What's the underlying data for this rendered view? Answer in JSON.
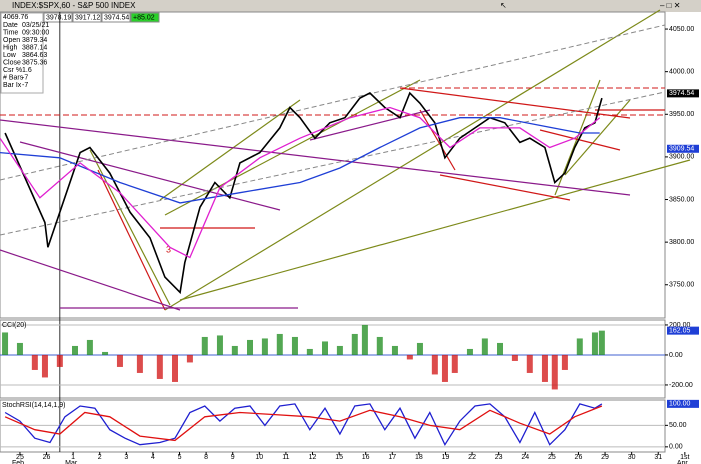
{
  "header": {
    "title": "INDEX:$SPX,60 - S&P 500 INDEX",
    "top_value": "4069.76",
    "quotes": [
      "3978.19",
      "3917.12",
      "3974.54",
      "+85.02"
    ],
    "info": [
      [
        "Date",
        "03/25/21"
      ],
      [
        "Time",
        "09:30:00"
      ],
      [
        "Open",
        "3879.34"
      ],
      [
        "High",
        "3887.14"
      ],
      [
        "Low",
        "3864.63"
      ],
      [
        "Close",
        "3875.36"
      ],
      [
        "Csr %",
        "1.6"
      ],
      [
        "# Bars",
        "-7"
      ],
      [
        "Bar Ix",
        "-7"
      ]
    ]
  },
  "chart_data": [
    {
      "type": "line",
      "ylim": [
        3711,
        4070
      ],
      "yticks": [
        {
          "value": 3750,
          "label": "3750.00"
        },
        {
          "value": 3800,
          "label": "3800.00"
        },
        {
          "value": 3850,
          "label": "3850.00"
        },
        {
          "value": 3900,
          "label": "3900.00"
        },
        {
          "value": 3950,
          "label": "3950.00"
        },
        {
          "value": 4000,
          "label": "4000.00"
        },
        {
          "value": 4050,
          "label": "4050.00"
        }
      ],
      "last_labels": [
        {
          "value": 3974.54,
          "label": "3974.54",
          "color": "#000000"
        },
        {
          "value": 3909.54,
          "label": "3909.54",
          "color": "#1f3fd6"
        }
      ],
      "series": [
        {
          "name": "Price",
          "color": "#000000",
          "x": [
            -0.56,
            0.94,
            1.05,
            2.26,
            2.63,
            3.38,
            4.14,
            4.89,
            5.45,
            6.02,
            6.2,
            6.77,
            7.33,
            7.89,
            8.27,
            9.02,
            9.77,
            10.15,
            10.53,
            11.09,
            11.65,
            12.22,
            12.78,
            13.16,
            13.72,
            14.29,
            14.66,
            15.04,
            15.6,
            15.98,
            16.54,
            17.11,
            17.67,
            18.23,
            18.8,
            19.17,
            19.74,
            20.11,
            20.49,
            20.86,
            21.24,
            21.62,
            21.88
          ],
          "values": [
            3928,
            3823,
            3794,
            3905,
            3911,
            3881,
            3835,
            3805,
            3759,
            3741,
            3776,
            3841,
            3870,
            3852,
            3893,
            3905,
            3934,
            3958,
            3946,
            3922,
            3940,
            3946,
            3969,
            3975,
            3958,
            3946,
            3975,
            3963,
            3940,
            3899,
            3922,
            3934,
            3946,
            3940,
            3917,
            3922,
            3911,
            3870,
            3881,
            3911,
            3934,
            3940,
            3969
          ]
        },
        {
          "name": "MA slow",
          "color": "#1f3fd6",
          "x": [
            -0.75,
            1.5,
            3.76,
            6.02,
            8.27,
            10.53,
            12.03,
            13.53,
            15.04,
            16.54,
            18.05,
            19.55,
            21.05,
            21.8
          ],
          "values": [
            3905,
            3899,
            3870,
            3846,
            3858,
            3870,
            3887,
            3911,
            3934,
            3946,
            3946,
            3937,
            3928,
            3928
          ]
        },
        {
          "name": "MA fast",
          "color": "#e020d0",
          "x": [
            -0.75,
            0.75,
            2.26,
            3.76,
            5.64,
            6.39,
            7.52,
            9.02,
            10.53,
            12.41,
            13.91,
            15.04,
            16.17,
            17.29,
            18.8,
            19.92,
            20.86,
            21.8
          ],
          "values": [
            3922,
            3852,
            3893,
            3858,
            3794,
            3782,
            3864,
            3899,
            3922,
            3946,
            3958,
            3946,
            3911,
            3934,
            3934,
            3911,
            3922,
            3946
          ]
        }
      ]
    },
    {
      "type": "bar",
      "title": "CCI(20)",
      "ylim": [
        -287,
        233
      ],
      "yticks": [
        {
          "value": -200,
          "label": "-200.00"
        },
        {
          "value": 0,
          "label": "0.00"
        },
        {
          "value": 200,
          "label": "200.00"
        }
      ],
      "colors": {
        "up": "#1a8a1a",
        "down": "#d01010"
      },
      "last_labels": [
        {
          "value": 162.05,
          "label": "162.05",
          "color": "#1f3fd6"
        }
      ],
      "x": [
        -0.56,
        0,
        0.56,
        0.94,
        1.5,
        2.07,
        2.63,
        3.2,
        3.76,
        4.51,
        5.26,
        5.83,
        6.39,
        6.95,
        7.52,
        8.08,
        8.65,
        9.21,
        9.77,
        10.34,
        10.9,
        11.47,
        12.03,
        12.59,
        12.97,
        13.53,
        14.1,
        14.66,
        15.04,
        15.6,
        15.98,
        16.35,
        16.92,
        17.48,
        18.05,
        18.61,
        19.17,
        19.74,
        20.11,
        20.49,
        21.05,
        21.62,
        21.88
      ],
      "values": [
        150,
        80,
        -100,
        -150,
        -80,
        60,
        100,
        20,
        -80,
        -120,
        -160,
        -180,
        -50,
        120,
        130,
        60,
        100,
        110,
        140,
        120,
        40,
        90,
        60,
        140,
        200,
        120,
        60,
        -30,
        80,
        -130,
        -180,
        -120,
        40,
        110,
        80,
        -40,
        -120,
        -180,
        -230,
        -100,
        110,
        150,
        162
      ]
    },
    {
      "type": "line",
      "title": "StochRSI(14,14,1,9)",
      "ylim": [
        -12,
        109
      ],
      "yticks": [
        {
          "value": 0,
          "label": "0.00"
        },
        {
          "value": 50,
          "label": "50.00"
        }
      ],
      "last_labels": [
        {
          "value": 100,
          "label": "100.00",
          "color": "#1f3fd6"
        }
      ],
      "series": [
        {
          "name": "StochRSI",
          "color": "#1f1fd0",
          "x": [
            -0.56,
            0,
            0.56,
            1.13,
            1.69,
            2.26,
            2.82,
            3.38,
            3.95,
            4.51,
            5.26,
            5.83,
            6.39,
            6.95,
            7.52,
            8.08,
            8.65,
            9.21,
            9.77,
            10.34,
            10.9,
            11.47,
            12.03,
            12.59,
            13.16,
            13.72,
            14.29,
            14.85,
            15.41,
            15.98,
            16.54,
            17.11,
            17.67,
            18.23,
            18.8,
            19.36,
            19.92,
            20.49,
            21.05,
            21.62,
            21.88
          ],
          "values": [
            80,
            60,
            20,
            10,
            70,
            95,
            90,
            40,
            20,
            5,
            10,
            20,
            80,
            95,
            60,
            90,
            95,
            50,
            95,
            100,
            40,
            90,
            30,
            95,
            100,
            40,
            90,
            20,
            80,
            5,
            60,
            95,
            100,
            70,
            10,
            80,
            5,
            40,
            100,
            90,
            100
          ]
        },
        {
          "name": "Signal",
          "color": "#e01010",
          "x": [
            -0.56,
            0.56,
            1.5,
            2.44,
            3.38,
            4.51,
            5.83,
            6.95,
            8.27,
            9.59,
            10.9,
            12.03,
            13.16,
            14.29,
            15.41,
            16.54,
            17.67,
            18.8,
            19.92,
            20.86,
            21.88
          ],
          "values": [
            70,
            40,
            30,
            80,
            70,
            25,
            15,
            70,
            80,
            75,
            70,
            60,
            85,
            70,
            50,
            40,
            85,
            55,
            30,
            70,
            95
          ]
        }
      ],
      "xlim": [
        -0.75,
        25.57
      ],
      "xticks": [
        {
          "value": 0,
          "label": "25"
        },
        {
          "value": 1,
          "label": "26"
        },
        {
          "value": 2,
          "label": "1"
        },
        {
          "value": 3,
          "label": "2"
        },
        {
          "value": 4,
          "label": "3"
        },
        {
          "value": 5,
          "label": "4"
        },
        {
          "value": 6,
          "label": "5"
        },
        {
          "value": 7,
          "label": "8"
        },
        {
          "value": 8,
          "label": "9"
        },
        {
          "value": 9,
          "label": "10"
        },
        {
          "value": 10,
          "label": "11"
        },
        {
          "value": 11,
          "label": "12"
        },
        {
          "value": 12,
          "label": "15"
        },
        {
          "value": 13,
          "label": "16"
        },
        {
          "value": 14,
          "label": "17"
        },
        {
          "value": 15,
          "label": "18"
        },
        {
          "value": 16,
          "label": "19"
        },
        {
          "value": 17,
          "label": "22"
        },
        {
          "value": 18,
          "label": "23"
        },
        {
          "value": 19,
          "label": "24"
        },
        {
          "value": 20,
          "label": "25"
        },
        {
          "value": 21,
          "label": "26"
        },
        {
          "value": 22,
          "label": "29"
        },
        {
          "value": 23,
          "label": "30"
        },
        {
          "value": 24,
          "label": "31"
        },
        {
          "value": 25,
          "label": "1st"
        }
      ],
      "month_ticks": [
        {
          "value": 0,
          "label": "Feb"
        },
        {
          "value": 2,
          "label": "Mar"
        },
        {
          "value": 25,
          "label": "Apr"
        }
      ]
    }
  ]
}
